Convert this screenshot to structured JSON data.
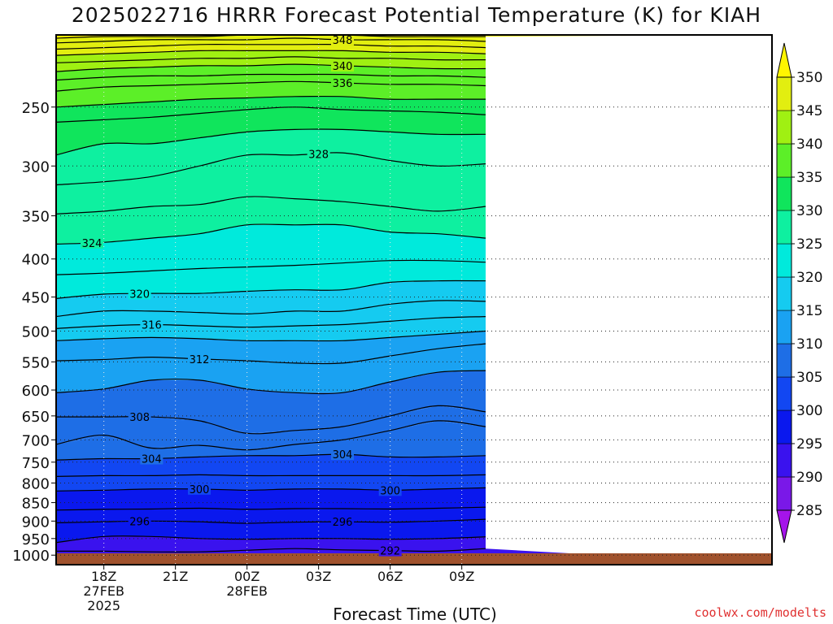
{
  "title": "2025022716 HRRR Forecast Potential Temperature (K) for KIAH",
  "credit": "coolwx.com/modelts",
  "chart_data": {
    "type": "heatmap",
    "title": "2025022716 HRRR Forecast Potential Temperature (K) for KIAH",
    "xlabel": "Forecast Time (UTC)",
    "ylabel": "",
    "x_range_hours": [
      16,
      46
    ],
    "y_axis": "pressure (hPa), log scale, inverted",
    "y_range": [
      1030,
      200
    ],
    "x_ticks": [
      {
        "hour": 18,
        "labels": [
          "18Z",
          "27FEB",
          "2025"
        ]
      },
      {
        "hour": 21,
        "labels": [
          "21Z"
        ]
      },
      {
        "hour": 24,
        "labels": [
          "00Z",
          "28FEB"
        ]
      },
      {
        "hour": 27,
        "labels": [
          "03Z"
        ]
      },
      {
        "hour": 30,
        "labels": [
          "06Z"
        ]
      },
      {
        "hour": 33,
        "labels": [
          "09Z"
        ]
      }
    ],
    "y_ticks": [
      250,
      300,
      350,
      400,
      450,
      500,
      550,
      600,
      650,
      700,
      750,
      800,
      850,
      900,
      950,
      1000
    ],
    "grid": "dotted",
    "colorbar": {
      "levels": [
        285,
        290,
        295,
        300,
        305,
        310,
        315,
        320,
        325,
        330,
        335,
        340,
        345,
        350
      ],
      "labels": [
        "285",
        "290",
        "295",
        "300",
        "305",
        "310",
        "315",
        "320",
        "325",
        "330",
        "335",
        "340",
        "345",
        "350"
      ],
      "colors": [
        "#7a18e8",
        "#3a12ee",
        "#0a18ee",
        "#1247f2",
        "#1e6ee6",
        "#1aa2f2",
        "#15cbf0",
        "#00eadc",
        "#0ef0a0",
        "#10e55c",
        "#5cef28",
        "#a0f012",
        "#e2ee10",
        "#fff500"
      ],
      "extend_low_color": "#a514ea",
      "extend_high_color": "#fff500"
    },
    "contour_labels": [
      "348",
      "340",
      "336",
      "328",
      "324",
      "320",
      "316",
      "312",
      "308",
      "304",
      "304",
      "300",
      "300",
      "296",
      "296",
      "292"
    ],
    "series": [
      {
        "theta": 292,
        "pressure": [
          988,
          988,
          990,
          990,
          985,
          980,
          984,
          986,
          988,
          980
        ]
      },
      {
        "theta": 294,
        "pressure": [
          962,
          944,
          944,
          950,
          952,
          950,
          950,
          952,
          950,
          945
        ]
      },
      {
        "theta": 296,
        "pressure": [
          905,
          902,
          900,
          902,
          906,
          903,
          902,
          903,
          900,
          895
        ]
      },
      {
        "theta": 298,
        "pressure": [
          870,
          868,
          867,
          865,
          868,
          866,
          866,
          867,
          865,
          862
        ]
      },
      {
        "theta": 300,
        "pressure": [
          820,
          818,
          815,
          815,
          818,
          815,
          815,
          818,
          815,
          812
        ]
      },
      {
        "theta": 302,
        "pressure": [
          784,
          782,
          782,
          780,
          782,
          782,
          782,
          782,
          782,
          780
        ]
      },
      {
        "theta": 304,
        "pressure": [
          745,
          742,
          742,
          738,
          735,
          735,
          732,
          738,
          738,
          735
        ]
      },
      {
        "theta": 306,
        "pressure": [
          710,
          690,
          718,
          712,
          722,
          710,
          700,
          680,
          660,
          672
        ]
      },
      {
        "theta": 308,
        "pressure": [
          652,
          652,
          652,
          660,
          686,
          680,
          672,
          650,
          630,
          642
        ]
      },
      {
        "theta": 310,
        "pressure": [
          605,
          598,
          582,
          582,
          598,
          605,
          605,
          585,
          568,
          565
        ]
      },
      {
        "theta": 312,
        "pressure": [
          548,
          546,
          542,
          545,
          548,
          552,
          552,
          540,
          528,
          520
        ]
      },
      {
        "theta": 314,
        "pressure": [
          515,
          512,
          510,
          512,
          515,
          515,
          515,
          510,
          505,
          500
        ]
      },
      {
        "theta": 316,
        "pressure": [
          496,
          492,
          490,
          492,
          494,
          492,
          490,
          485,
          480,
          478
        ]
      },
      {
        "theta": 318,
        "pressure": [
          478,
          470,
          470,
          472,
          474,
          470,
          470,
          460,
          455,
          456
        ]
      },
      {
        "theta": 320,
        "pressure": [
          452,
          446,
          445,
          445,
          442,
          440,
          440,
          430,
          428,
          428
        ]
      },
      {
        "theta": 322,
        "pressure": [
          420,
          418,
          415,
          412,
          410,
          408,
          405,
          402,
          402,
          404
        ]
      },
      {
        "theta": 324,
        "pressure": [
          382,
          380,
          375,
          370,
          360,
          360,
          360,
          368,
          370,
          375
        ]
      },
      {
        "theta": 326,
        "pressure": [
          348,
          345,
          340,
          338,
          330,
          332,
          335,
          340,
          345,
          340
        ]
      },
      {
        "theta": 328,
        "pressure": [
          318,
          315,
          310,
          300,
          290,
          290,
          288,
          295,
          300,
          298
        ]
      },
      {
        "theta": 330,
        "pressure": [
          290,
          280,
          280,
          275,
          270,
          268,
          268,
          270,
          272,
          272
        ]
      },
      {
        "theta": 332,
        "pressure": [
          262,
          260,
          258,
          255,
          252,
          250,
          252,
          253,
          254,
          256
        ]
      },
      {
        "theta": 334,
        "pressure": [
          250,
          248,
          246,
          244,
          243,
          242,
          242,
          244,
          244,
          244
        ]
      },
      {
        "theta": 336,
        "pressure": [
          238,
          235,
          234,
          233,
          232,
          231,
          232,
          233,
          233,
          234
        ]
      },
      {
        "theta": 338,
        "pressure": [
          230,
          228,
          227,
          227,
          226,
          226,
          226,
          227,
          227,
          228
        ]
      },
      {
        "theta": 340,
        "pressure": [
          224,
          222,
          221,
          220,
          220,
          219,
          220,
          221,
          222,
          222
        ]
      },
      {
        "theta": 342,
        "pressure": [
          218,
          217,
          216,
          215,
          215,
          214,
          215,
          215,
          216,
          216
        ]
      },
      {
        "theta": 344,
        "pressure": [
          213,
          212,
          211,
          210,
          210,
          210,
          210,
          211,
          211,
          212
        ]
      },
      {
        "theta": 346,
        "pressure": [
          209,
          208,
          207,
          206,
          206,
          206,
          206,
          207,
          207,
          208
        ]
      },
      {
        "theta": 348,
        "pressure": [
          205,
          204,
          203,
          203,
          203,
          202,
          203,
          203,
          203,
          204
        ]
      },
      {
        "theta": 350,
        "pressure": [
          202,
          201,
          201,
          201,
          200,
          200,
          200,
          201,
          201,
          201
        ]
      }
    ],
    "series_x_hours": [
      16,
      18,
      20,
      22,
      24,
      26,
      28,
      30,
      32,
      34
    ]
  }
}
